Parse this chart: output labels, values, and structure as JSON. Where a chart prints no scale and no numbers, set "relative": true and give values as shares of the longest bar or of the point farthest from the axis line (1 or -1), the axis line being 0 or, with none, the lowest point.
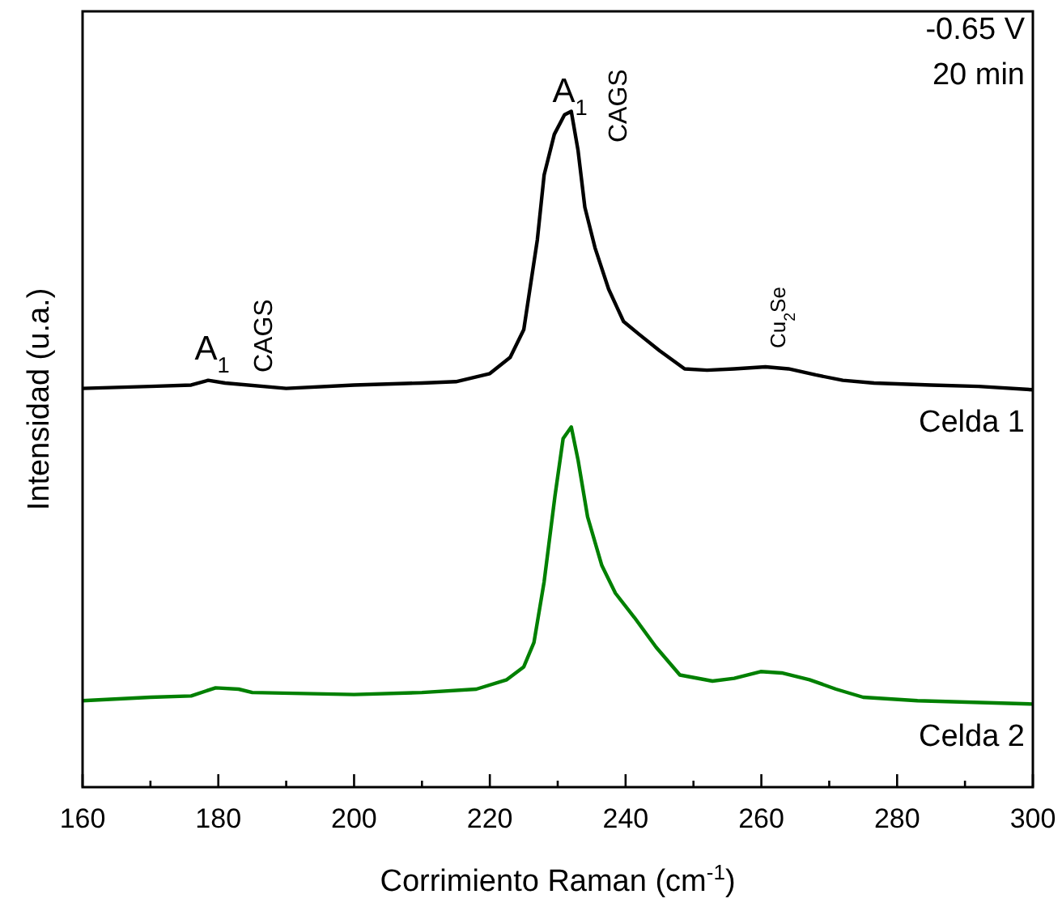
{
  "chart_data": {
    "type": "line",
    "relative": true,
    "xlabel": "Corrimiento Raman (cm$^{-1}$)",
    "ylabel": "Intensidad (u.a.)",
    "xlim": [
      160,
      300
    ],
    "xticks": [
      160,
      {
        "value": 170,
        "label": null
      },
      180,
      {
        "value": 190,
        "label": null
      },
      200,
      {
        "value": 210,
        "label": null
      },
      220,
      {
        "value": 230,
        "label": null
      },
      240,
      {
        "value": 250,
        "label": null
      },
      260,
      {
        "value": 270,
        "label": null
      },
      280,
      {
        "value": 290,
        "label": null
      },
      300
    ],
    "grid": false,
    "marker": "none",
    "line_style": "solid",
    "series": [
      {
        "name": "Celda 1",
        "color": "#000000",
        "x": [
          160,
          170,
          176,
          178.5,
          181,
          190,
          200,
          210,
          215,
          220,
          223,
          225,
          227,
          228,
          229.5,
          231,
          232,
          233,
          234,
          235.5,
          237.5,
          239.7,
          242,
          245,
          248.7,
          252,
          256,
          260.6,
          264,
          268,
          272,
          276.6,
          285,
          292,
          300
        ],
        "values": [
          0.59,
          0.593,
          0.595,
          0.602,
          0.598,
          0.59,
          0.595,
          0.598,
          0.6,
          0.612,
          0.636,
          0.677,
          0.81,
          0.906,
          0.966,
          0.995,
          1.0,
          0.942,
          0.858,
          0.798,
          0.737,
          0.689,
          0.67,
          0.646,
          0.619,
          0.617,
          0.619,
          0.622,
          0.619,
          0.61,
          0.602,
          0.598,
          0.595,
          0.593,
          0.588
        ]
      },
      {
        "name": "Celda 2",
        "color": "#008000",
        "x": [
          160,
          170,
          176,
          179.6,
          183,
          185,
          200,
          210,
          218,
          222.5,
          225,
          226.5,
          228,
          229.6,
          230.8,
          232,
          233,
          234.4,
          236.5,
          238.5,
          241.3,
          244.5,
          248,
          252.8,
          256,
          259.9,
          263,
          267.1,
          271,
          275,
          283,
          300
        ],
        "values": [
          0.128,
          0.133,
          0.135,
          0.147,
          0.145,
          0.14,
          0.137,
          0.14,
          0.145,
          0.159,
          0.178,
          0.214,
          0.304,
          0.431,
          0.516,
          0.533,
          0.484,
          0.4,
          0.328,
          0.287,
          0.251,
          0.207,
          0.166,
          0.157,
          0.161,
          0.171,
          0.169,
          0.159,
          0.145,
          0.133,
          0.128,
          0.123
        ]
      }
    ],
    "annotations": [
      "-0.65 V",
      "20 min",
      "A$_{1}$",
      "CAGS",
      "A$_{1}$",
      "CAGS",
      "Cu$_{2}$Se"
    ]
  }
}
